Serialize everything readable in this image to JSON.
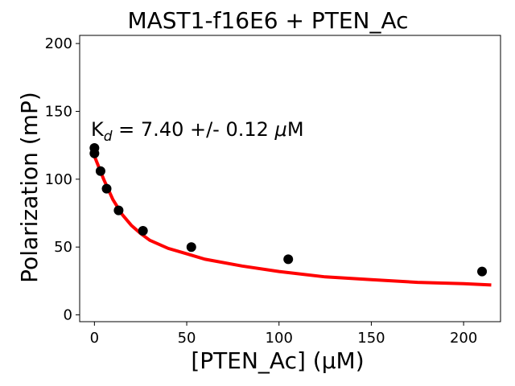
{
  "chart_data": {
    "type": "scatter",
    "title": "MAST1-f16E6 + PTEN_Ac",
    "xlabel": "[PTEN_Ac] (μM)",
    "ylabel": "Polarization (mP)",
    "xlim": [
      -8,
      220
    ],
    "ylim": [
      -5,
      206
    ],
    "xticks": [
      0,
      50,
      100,
      150,
      200
    ],
    "yticks": [
      0,
      50,
      100,
      150,
      200
    ],
    "annotation": {
      "kd_symbol": "K",
      "kd_subscript": "d",
      "kd_text": " = 7.40 +/- 0.12 ",
      "kd_mu": "μ",
      "kd_unit": "M"
    },
    "series": [
      {
        "name": "data",
        "kind": "points",
        "color": "#000000",
        "x": [
          0,
          0,
          3.3,
          6.6,
          13.1,
          26.3,
          52.5,
          105,
          210
        ],
        "y": [
          123,
          119,
          106,
          93,
          77,
          62,
          50,
          41,
          32
        ]
      },
      {
        "name": "fit",
        "kind": "line",
        "color": "#ff0000",
        "x": [
          0,
          5,
          10,
          15,
          20,
          25,
          30,
          40,
          50,
          60,
          80,
          100,
          125,
          150,
          175,
          200,
          215
        ],
        "y": [
          117,
          100,
          85,
          74,
          66,
          60,
          55,
          49,
          45,
          41,
          36,
          32,
          28,
          26,
          24,
          23,
          22
        ]
      }
    ]
  }
}
